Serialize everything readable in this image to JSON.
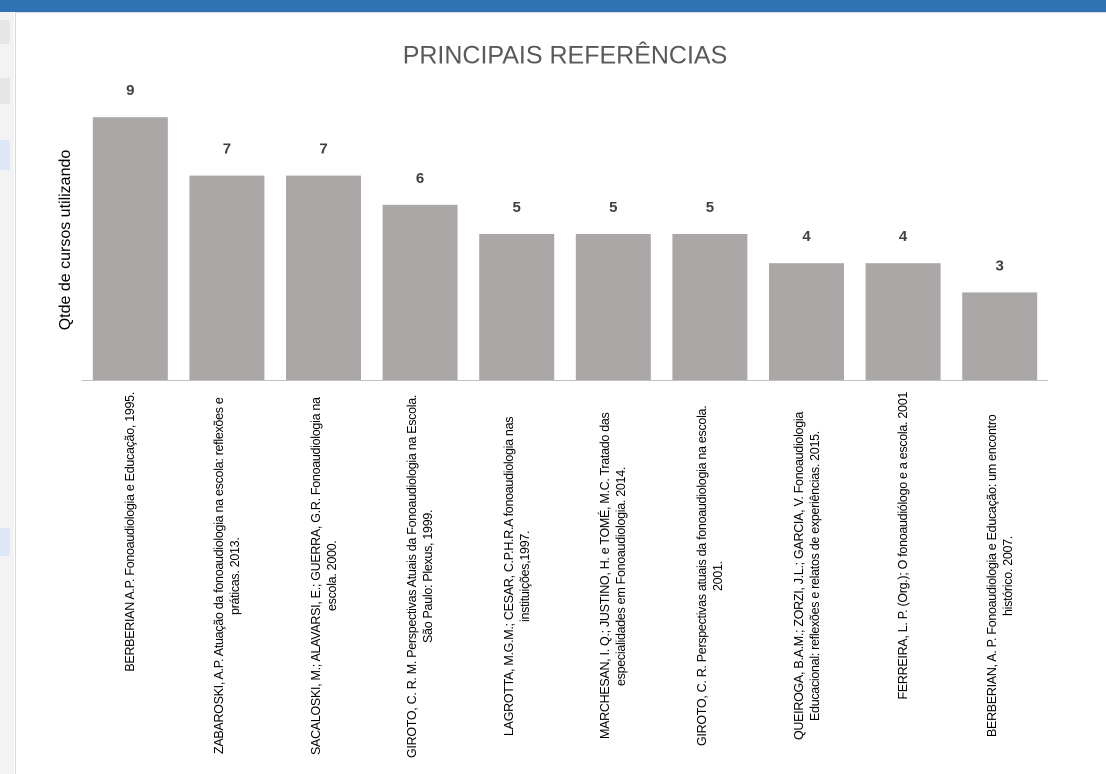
{
  "chart_data": {
    "type": "bar",
    "title": "PRINCIPAIS REFERÊNCIAS",
    "y_label": "Qtde de cursos utilizando",
    "categories": [
      "BERBERIAN A.P. Fonoaudiologia e Educação, 1995.",
      "ZABAROSKI, A.P. Atuação da fonoaudiologia na escola: reflexões e práticas. 2013.",
      "SACALOSKI, M.; ALAVARSI, E.; GUERRA, G.R. Fonoaudiologia na escola. 2000.",
      "GIROTO, C. R. M. Perspectivas Atuais da Fonoaudiologia na Escola. São Paulo: Plexus, 1999.",
      "LAGROTTA, M.G.M.; CESAR, C.P.H.R.A fonoaudiologia nas instituições,1997.",
      "MARCHESAN, I. Q.; JUSTINO, H. e TOMÉ, M.C. Tratado das especialidades em Fonoaudiologia. 2014.",
      "GIROTO, C. R. Perspectivas atuais da fonoaudiologia na escola. 2001.",
      "QUEIROGA, B.A.M.; ZORZI, J.L.; GARCIA, V. Fonoaudiologia Educacional: reflexões e relatos de experiências. 2015.",
      "FERREIRA, L. P. (Org.); O fonoaudiólogo e a escola. 2001",
      "BERBERIAN, A. P. Fonoaudiologia e Educação: um encontro histórico. 2007."
    ],
    "values": [
      9,
      7,
      7,
      6,
      5,
      5,
      5,
      4,
      4,
      3
    ],
    "color": "#aba7a6",
    "ylim": [
      0,
      10
    ]
  }
}
